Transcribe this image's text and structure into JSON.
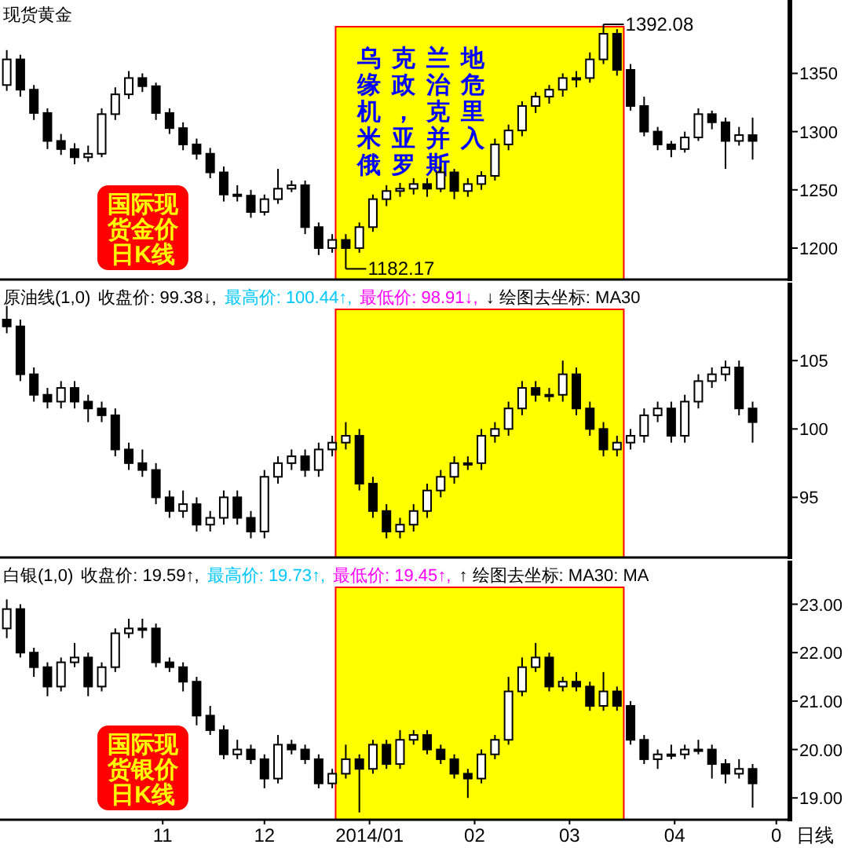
{
  "chart_data": [
    {
      "type": "candlestick",
      "title": "现货黄金",
      "tick_labels": "y",
      "xlim": [
        "2013-09-14",
        "2014-05-05"
      ],
      "ylim": [
        1173,
        1413
      ],
      "yticks": [
        1200,
        1250,
        1300,
        1350
      ],
      "x": [
        "2013-09-16",
        "2013-09-20",
        "2013-09-24",
        "2013-09-28",
        "2013-10-02",
        "2013-10-06",
        "2013-10-10",
        "2013-10-14",
        "2013-10-18",
        "2013-10-22",
        "2013-10-26",
        "2013-10-30",
        "2013-11-03",
        "2013-11-07",
        "2013-11-11",
        "2013-11-15",
        "2013-11-19",
        "2013-11-23",
        "2013-11-27",
        "2013-12-01",
        "2013-12-05",
        "2013-12-09",
        "2013-12-13",
        "2013-12-17",
        "2013-12-21",
        "2013-12-25",
        "2013-12-29",
        "2014-01-02",
        "2014-01-06",
        "2014-01-10",
        "2014-01-14",
        "2014-01-18",
        "2014-01-22",
        "2014-01-26",
        "2014-01-30",
        "2014-02-03",
        "2014-02-07",
        "2014-02-11",
        "2014-02-15",
        "2014-02-19",
        "2014-02-23",
        "2014-02-27",
        "2014-03-03",
        "2014-03-07",
        "2014-03-11",
        "2014-03-15",
        "2014-03-19",
        "2014-03-23",
        "2014-03-27",
        "2014-03-31",
        "2014-04-04",
        "2014-04-08",
        "2014-04-12",
        "2014-04-16",
        "2014-04-20",
        "2014-04-24"
      ],
      "ohlc": [
        [
          1340,
          1370,
          1335,
          1362
        ],
        [
          1362,
          1366,
          1330,
          1336
        ],
        [
          1336,
          1340,
          1310,
          1316
        ],
        [
          1316,
          1320,
          1285,
          1292
        ],
        [
          1292,
          1298,
          1280,
          1285
        ],
        [
          1285,
          1290,
          1272,
          1278
        ],
        [
          1278,
          1288,
          1274,
          1281
        ],
        [
          1281,
          1320,
          1278,
          1315
        ],
        [
          1315,
          1338,
          1310,
          1332
        ],
        [
          1332,
          1352,
          1328,
          1346
        ],
        [
          1346,
          1350,
          1334,
          1339
        ],
        [
          1339,
          1342,
          1310,
          1316
        ],
        [
          1316,
          1320,
          1298,
          1303
        ],
        [
          1303,
          1308,
          1284,
          1289
        ],
        [
          1289,
          1294,
          1276,
          1281
        ],
        [
          1281,
          1286,
          1260,
          1265
        ],
        [
          1265,
          1270,
          1240,
          1246
        ],
        [
          1246,
          1254,
          1240,
          1245
        ],
        [
          1245,
          1250,
          1226,
          1231
        ],
        [
          1231,
          1246,
          1228,
          1242
        ],
        [
          1242,
          1268,
          1238,
          1251
        ],
        [
          1251,
          1258,
          1248,
          1254
        ],
        [
          1254,
          1258,
          1212,
          1218
        ],
        [
          1218,
          1222,
          1194,
          1200
        ],
        [
          1200,
          1212,
          1196,
          1207
        ],
        [
          1207,
          1212,
          1182.17,
          1200
        ],
        [
          1200,
          1222,
          1196,
          1218
        ],
        [
          1218,
          1246,
          1214,
          1242
        ],
        [
          1242,
          1254,
          1236,
          1249
        ],
        [
          1249,
          1256,
          1244,
          1251
        ],
        [
          1251,
          1260,
          1246,
          1255
        ],
        [
          1255,
          1260,
          1244,
          1251
        ],
        [
          1251,
          1270,
          1248,
          1265
        ],
        [
          1265,
          1268,
          1242,
          1249
        ],
        [
          1249,
          1260,
          1244,
          1255
        ],
        [
          1255,
          1266,
          1250,
          1262
        ],
        [
          1262,
          1294,
          1258,
          1289
        ],
        [
          1289,
          1306,
          1284,
          1301
        ],
        [
          1301,
          1326,
          1296,
          1322
        ],
        [
          1322,
          1334,
          1316,
          1330
        ],
        [
          1330,
          1340,
          1324,
          1336
        ],
        [
          1336,
          1350,
          1330,
          1346
        ],
        [
          1346,
          1352,
          1338,
          1346
        ],
        [
          1346,
          1368,
          1342,
          1362
        ],
        [
          1362,
          1392.08,
          1358,
          1384
        ],
        [
          1384,
          1388,
          1348,
          1353
        ],
        [
          1353,
          1358,
          1318,
          1322
        ],
        [
          1322,
          1330,
          1296,
          1300
        ],
        [
          1300,
          1304,
          1284,
          1289
        ],
        [
          1289,
          1292,
          1278,
          1285
        ],
        [
          1285,
          1300,
          1282,
          1295
        ],
        [
          1295,
          1320,
          1292,
          1315
        ],
        [
          1315,
          1318,
          1302,
          1308
        ],
        [
          1308,
          1312,
          1268,
          1292
        ],
        [
          1292,
          1304,
          1288,
          1297
        ],
        [
          1297,
          1312,
          1276,
          1292
        ]
      ],
      "bands": [
        {
          "axis": "x",
          "from": "2013-12-22",
          "to": "2014-03-17",
          "color": "#ffff00",
          "label": "乌克兰地缘政治危机，克里米亚并入俄罗斯"
        }
      ],
      "annotations": [
        "国际现货金价日K线",
        {
          "text": "1182.17",
          "x": "2013-12-25",
          "y": 1182.17
        },
        {
          "text": "1392.08",
          "x": "2014-03-11",
          "y": 1392.08
        }
      ]
    },
    {
      "type": "candlestick",
      "title": "原油线(1,0)",
      "subtitle": "收盘价: 99.38↓, 最高价: 100.44↑, 最低价: 98.91↓, ↓ 绘图去坐标: MA30",
      "tick_labels": "y",
      "xlim": [
        "2013-09-14",
        "2014-05-05"
      ],
      "ylim": [
        90.6,
        110.7
      ],
      "yticks": [
        95,
        100,
        105
      ],
      "x": [
        "2013-09-16",
        "2013-09-20",
        "2013-09-24",
        "2013-09-28",
        "2013-10-02",
        "2013-10-06",
        "2013-10-10",
        "2013-10-14",
        "2013-10-18",
        "2013-10-22",
        "2013-10-26",
        "2013-10-30",
        "2013-11-03",
        "2013-11-07",
        "2013-11-11",
        "2013-11-15",
        "2013-11-19",
        "2013-11-23",
        "2013-11-27",
        "2013-12-01",
        "2013-12-05",
        "2013-12-09",
        "2013-12-13",
        "2013-12-17",
        "2013-12-21",
        "2013-12-25",
        "2013-12-29",
        "2014-01-02",
        "2014-01-06",
        "2014-01-10",
        "2014-01-14",
        "2014-01-18",
        "2014-01-22",
        "2014-01-26",
        "2014-01-30",
        "2014-02-03",
        "2014-02-07",
        "2014-02-11",
        "2014-02-15",
        "2014-02-19",
        "2014-02-23",
        "2014-02-27",
        "2014-03-03",
        "2014-03-07",
        "2014-03-11",
        "2014-03-15",
        "2014-03-19",
        "2014-03-23",
        "2014-03-27",
        "2014-03-31",
        "2014-04-04",
        "2014-04-08",
        "2014-04-12",
        "2014-04-16",
        "2014-04-20",
        "2014-04-24"
      ],
      "ohlc": [
        [
          108,
          109,
          107,
          107.5
        ],
        [
          107.5,
          108,
          103.5,
          104
        ],
        [
          104,
          104.5,
          102,
          102.5
        ],
        [
          102.5,
          103,
          101.5,
          102
        ],
        [
          102,
          103.5,
          101.5,
          103
        ],
        [
          103,
          103.5,
          101.5,
          102
        ],
        [
          102,
          102.5,
          100.5,
          101.5
        ],
        [
          101.5,
          102,
          100.5,
          101
        ],
        [
          101,
          101.5,
          98,
          98.5
        ],
        [
          98.5,
          99,
          97,
          97.5
        ],
        [
          97.5,
          98.5,
          96.5,
          97
        ],
        [
          97,
          97.5,
          94.5,
          95
        ],
        [
          95,
          95.5,
          93.5,
          94
        ],
        [
          94,
          95.5,
          93.5,
          94.5
        ],
        [
          94.5,
          95,
          92.5,
          93
        ],
        [
          93,
          94,
          92.5,
          93.5
        ],
        [
          93.5,
          95.5,
          93,
          95
        ],
        [
          95,
          95.5,
          93,
          93.5
        ],
        [
          93.5,
          94,
          92,
          92.5
        ],
        [
          92.5,
          97,
          92,
          96.5
        ],
        [
          96.5,
          98,
          96,
          97.5
        ],
        [
          97.5,
          98.5,
          97,
          98
        ],
        [
          98,
          98.5,
          96.5,
          97
        ],
        [
          97,
          99,
          96.5,
          98.5
        ],
        [
          98.5,
          99.5,
          98,
          99
        ],
        [
          99,
          100.5,
          98.5,
          99.5
        ],
        [
          99.5,
          100,
          95.5,
          96
        ],
        [
          96,
          96.5,
          93.5,
          94
        ],
        [
          94,
          94.5,
          92,
          92.5
        ],
        [
          92.5,
          93.5,
          92,
          93
        ],
        [
          93,
          94.5,
          92.5,
          94
        ],
        [
          94,
          96,
          93.5,
          95.5
        ],
        [
          95.5,
          97,
          95,
          96.5
        ],
        [
          96.5,
          98,
          96,
          97.5
        ],
        [
          97.5,
          98,
          97,
          97.5
        ],
        [
          97.5,
          100,
          97,
          99.5
        ],
        [
          99.5,
          100.5,
          99,
          100
        ],
        [
          100,
          102,
          99.5,
          101.5
        ],
        [
          101.5,
          103.5,
          101,
          103
        ],
        [
          103,
          103.5,
          102,
          102.5
        ],
        [
          102.5,
          103,
          102,
          102.5
        ],
        [
          102.5,
          105,
          102,
          104
        ],
        [
          104,
          104.5,
          101,
          101.5
        ],
        [
          101.5,
          102,
          99.5,
          100
        ],
        [
          100,
          100.5,
          98,
          98.5
        ],
        [
          98.5,
          99.5,
          98,
          99
        ],
        [
          99,
          100,
          98.5,
          99.5
        ],
        [
          99.5,
          101.5,
          99,
          101
        ],
        [
          101,
          102,
          100.5,
          101.5
        ],
        [
          101.5,
          102,
          99,
          99.5
        ],
        [
          99.5,
          102.5,
          99,
          102
        ],
        [
          102,
          104,
          101.5,
          103.5
        ],
        [
          103.5,
          104.5,
          103,
          104
        ],
        [
          104,
          105,
          103.5,
          104.5
        ],
        [
          104.5,
          105,
          101,
          101.5
        ],
        [
          101.5,
          102,
          99,
          100.5
        ]
      ],
      "bands": [
        {
          "axis": "x",
          "from": "2013-12-22",
          "to": "2014-03-17",
          "color": "#ffff00"
        }
      ]
    },
    {
      "type": "candlestick",
      "title": "白银(1,0)",
      "subtitle": "收盘价: 19.59↑, 最高价: 19.73↑, 最低价: 19.45↑, ↑ 绘图去坐标: MA30: MA",
      "xlabel": "日线",
      "xlim": [
        "2013-09-14",
        "2014-05-05"
      ],
      "ylim": [
        18.55,
        23.9
      ],
      "yticks": [
        {
          "value": 19,
          "label": "19.00"
        },
        {
          "value": 20,
          "label": "20.00"
        },
        {
          "value": 21,
          "label": "21.00"
        },
        {
          "value": 22,
          "label": "22.00"
        },
        {
          "value": 23,
          "label": "23.00"
        }
      ],
      "xticks": [
        {
          "value": "2013-11-01",
          "label": "11"
        },
        {
          "value": "2013-12-01",
          "label": "12"
        },
        {
          "value": "2014-01-01",
          "label": "2014/01"
        },
        {
          "value": "2014-02-01",
          "label": "02"
        },
        {
          "value": "2014-03-01",
          "label": "03"
        },
        {
          "value": "2014-04-01",
          "label": "04"
        },
        {
          "value": "2014-05-01",
          "label": "0"
        }
      ],
      "x": [
        "2013-09-16",
        "2013-09-20",
        "2013-09-24",
        "2013-09-28",
        "2013-10-02",
        "2013-10-06",
        "2013-10-10",
        "2013-10-14",
        "2013-10-18",
        "2013-10-22",
        "2013-10-26",
        "2013-10-30",
        "2013-11-03",
        "2013-11-07",
        "2013-11-11",
        "2013-11-15",
        "2013-11-19",
        "2013-11-23",
        "2013-11-27",
        "2013-12-01",
        "2013-12-05",
        "2013-12-09",
        "2013-12-13",
        "2013-12-17",
        "2013-12-21",
        "2013-12-25",
        "2013-12-29",
        "2014-01-02",
        "2014-01-06",
        "2014-01-10",
        "2014-01-14",
        "2014-01-18",
        "2014-01-22",
        "2014-01-26",
        "2014-01-30",
        "2014-02-03",
        "2014-02-07",
        "2014-02-11",
        "2014-02-15",
        "2014-02-19",
        "2014-02-23",
        "2014-02-27",
        "2014-03-03",
        "2014-03-07",
        "2014-03-11",
        "2014-03-15",
        "2014-03-19",
        "2014-03-23",
        "2014-03-27",
        "2014-03-31",
        "2014-04-04",
        "2014-04-08",
        "2014-04-12",
        "2014-04-16",
        "2014-04-20",
        "2014-04-24"
      ],
      "ohlc": [
        [
          22.5,
          23.1,
          22.3,
          22.9
        ],
        [
          22.9,
          23.0,
          21.9,
          22.0
        ],
        [
          22.0,
          22.1,
          21.5,
          21.7
        ],
        [
          21.7,
          21.8,
          21.1,
          21.3
        ],
        [
          21.3,
          21.9,
          21.2,
          21.8
        ],
        [
          21.8,
          22.2,
          21.7,
          21.9
        ],
        [
          21.9,
          22.0,
          21.1,
          21.3
        ],
        [
          21.3,
          21.8,
          21.2,
          21.7
        ],
        [
          21.7,
          22.5,
          21.6,
          22.4
        ],
        [
          22.4,
          22.7,
          22.3,
          22.5
        ],
        [
          22.5,
          22.7,
          22.3,
          22.5
        ],
        [
          22.5,
          22.6,
          21.7,
          21.8
        ],
        [
          21.8,
          21.9,
          21.6,
          21.7
        ],
        [
          21.7,
          21.8,
          21.2,
          21.4
        ],
        [
          21.4,
          21.5,
          20.5,
          20.7
        ],
        [
          20.7,
          20.9,
          20.3,
          20.4
        ],
        [
          20.4,
          20.5,
          19.8,
          19.9
        ],
        [
          19.9,
          20.2,
          19.8,
          20.0
        ],
        [
          20.0,
          20.1,
          19.7,
          19.8
        ],
        [
          19.8,
          19.9,
          19.2,
          19.4
        ],
        [
          19.4,
          20.3,
          19.3,
          20.1
        ],
        [
          20.1,
          20.2,
          19.9,
          20.0
        ],
        [
          20.0,
          20.1,
          19.7,
          19.8
        ],
        [
          19.8,
          19.9,
          19.2,
          19.3
        ],
        [
          19.3,
          19.6,
          19.2,
          19.5
        ],
        [
          19.5,
          20.1,
          19.4,
          19.8
        ],
        [
          19.8,
          19.9,
          18.7,
          19.6
        ],
        [
          19.6,
          20.2,
          19.5,
          20.1
        ],
        [
          20.1,
          20.2,
          19.6,
          19.7
        ],
        [
          19.7,
          20.4,
          19.6,
          20.2
        ],
        [
          20.2,
          20.4,
          20.1,
          20.3
        ],
        [
          20.3,
          20.4,
          19.9,
          20.0
        ],
        [
          20.0,
          20.1,
          19.7,
          19.8
        ],
        [
          19.8,
          19.9,
          19.4,
          19.5
        ],
        [
          19.5,
          19.6,
          19.0,
          19.4
        ],
        [
          19.4,
          20.0,
          19.3,
          19.9
        ],
        [
          19.9,
          20.3,
          19.8,
          20.2
        ],
        [
          20.2,
          21.5,
          20.1,
          21.2
        ],
        [
          21.2,
          21.9,
          21.1,
          21.7
        ],
        [
          21.7,
          22.2,
          21.6,
          21.9
        ],
        [
          21.9,
          22.0,
          21.2,
          21.3
        ],
        [
          21.3,
          21.5,
          21.2,
          21.4
        ],
        [
          21.4,
          21.6,
          21.2,
          21.3
        ],
        [
          21.3,
          21.4,
          20.8,
          20.9
        ],
        [
          20.9,
          21.6,
          20.8,
          21.2
        ],
        [
          21.2,
          21.3,
          20.8,
          20.9
        ],
        [
          20.9,
          21.0,
          20.1,
          20.2
        ],
        [
          20.2,
          20.3,
          19.7,
          19.8
        ],
        [
          19.8,
          20.0,
          19.6,
          19.9
        ],
        [
          19.9,
          20.1,
          19.8,
          19.9
        ],
        [
          19.9,
          20.1,
          19.8,
          20.0
        ],
        [
          20.0,
          20.2,
          19.9,
          20.0
        ],
        [
          20.0,
          20.1,
          19.4,
          19.7
        ],
        [
          19.7,
          19.8,
          19.3,
          19.5
        ],
        [
          19.5,
          19.8,
          19.4,
          19.6
        ],
        [
          19.6,
          19.7,
          18.8,
          19.3
        ]
      ],
      "bands": [
        {
          "axis": "x",
          "from": "2013-12-22",
          "to": "2014-03-17",
          "color": "#ffff00"
        }
      ],
      "annotations": [
        "国际现货银价日K线"
      ]
    }
  ]
}
